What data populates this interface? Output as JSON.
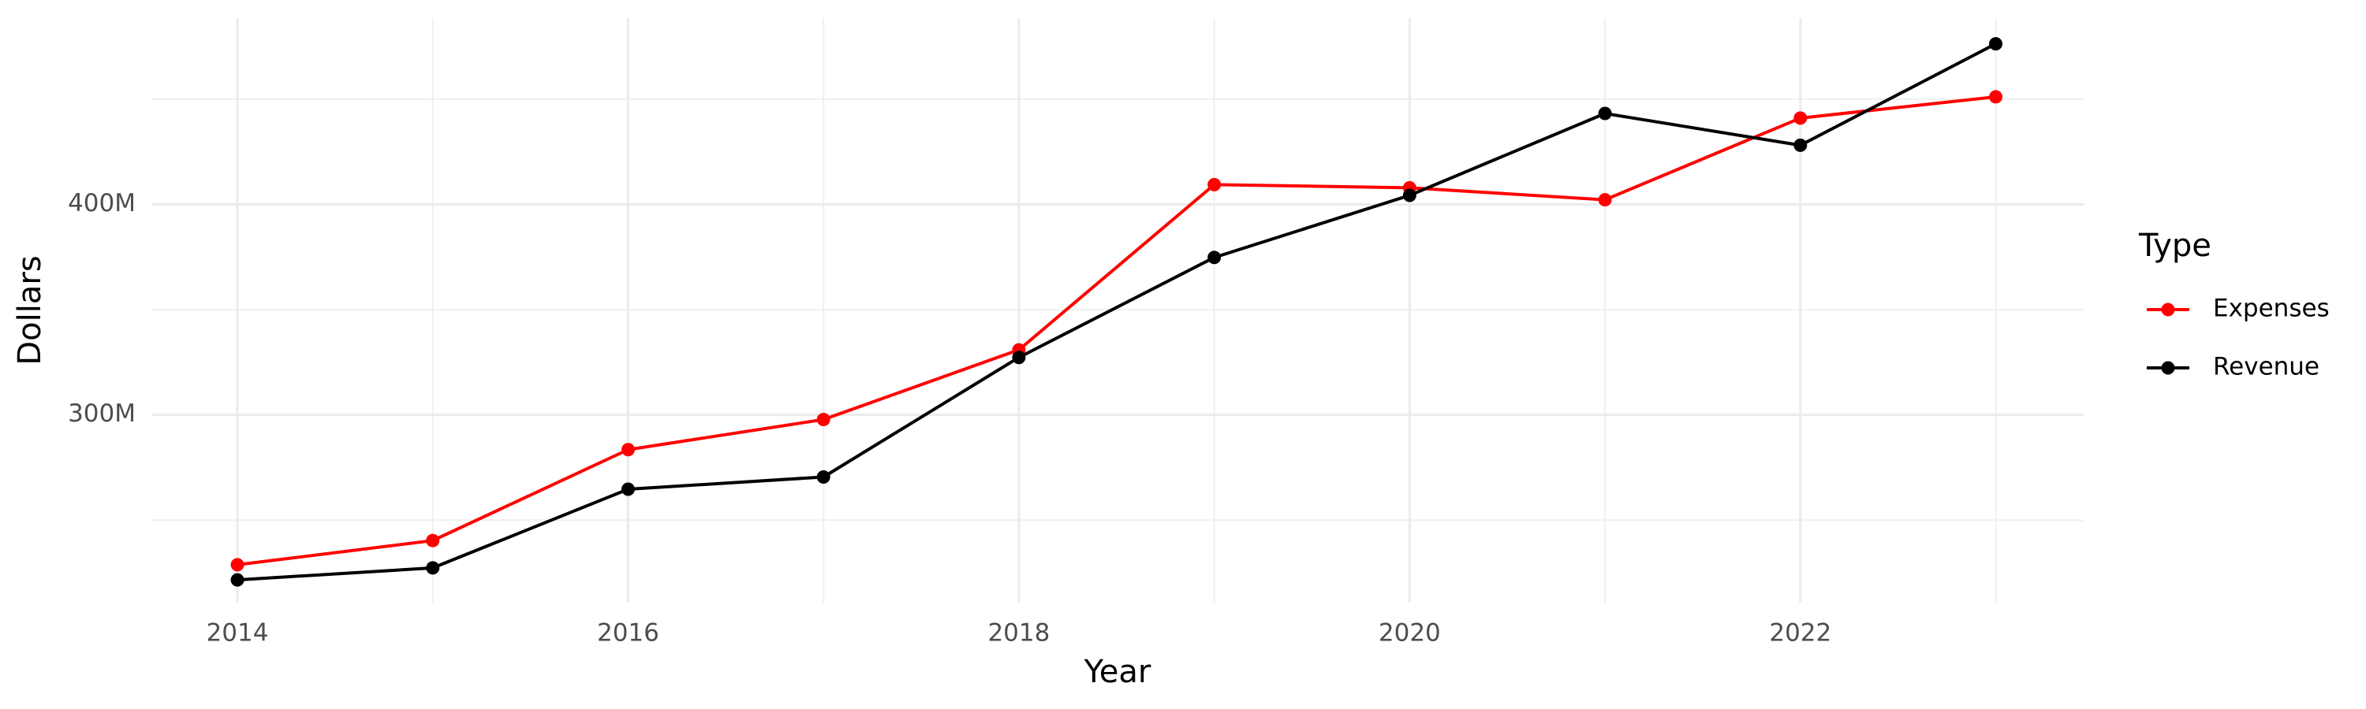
{
  "chart_data": {
    "type": "line",
    "x_label": "Year",
    "y_label": "Dollars",
    "legend_title": "Type",
    "x": [
      2014,
      2015,
      2016,
      2017,
      2018,
      2019,
      2020,
      2021,
      2022,
      2023
    ],
    "series": [
      {
        "name": "Expenses",
        "color": "#ff0000",
        "values": [
          228800000,
          240300000,
          283500000,
          297800000,
          330900000,
          409400000,
          407900000,
          402200000,
          441000000,
          451100000
        ]
      },
      {
        "name": "Revenue",
        "color": "#000000",
        "values": [
          221600000,
          227300000,
          264700000,
          270500000,
          327300000,
          374800000,
          404300000,
          443200000,
          428100000,
          476300000
        ]
      }
    ],
    "xlim": [
      2013.56,
      2023.45
    ],
    "ylim": [
      210800000,
      488500000
    ],
    "xticks": [
      2014,
      2016,
      2018,
      2020,
      2022
    ],
    "yticks": [
      {
        "value": 300000000,
        "label": "300M"
      },
      {
        "value": 400000000,
        "label": "400M"
      }
    ],
    "grid": true,
    "legend": "right"
  }
}
